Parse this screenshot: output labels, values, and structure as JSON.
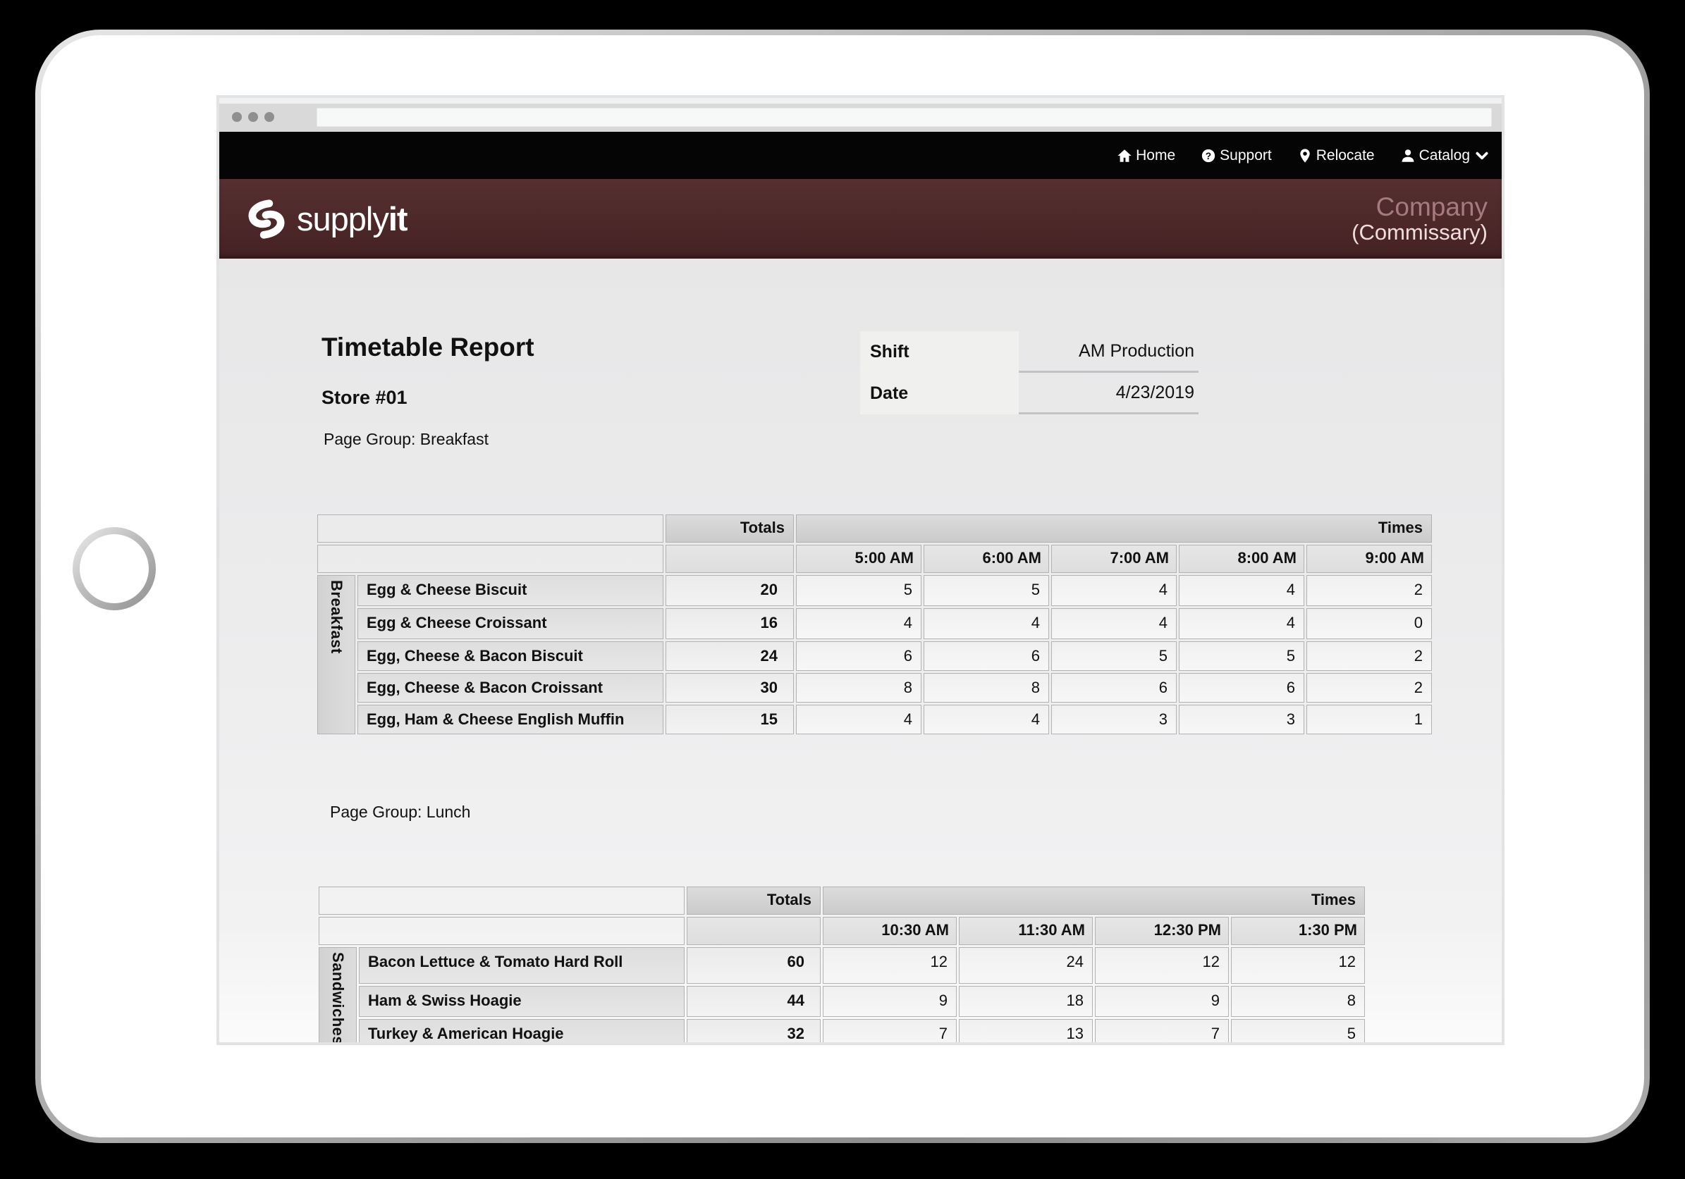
{
  "browser": {
    "address_value": ""
  },
  "navbar": {
    "background": "#050505",
    "items": [
      {
        "id": "home",
        "label": "Home",
        "icon": "home-icon"
      },
      {
        "id": "support",
        "label": "Support",
        "icon": "question-icon"
      },
      {
        "id": "relocate",
        "label": "Relocate",
        "icon": "location-pin-icon"
      },
      {
        "id": "catalog",
        "label": "Catalog",
        "icon": "person-icon",
        "has_dropdown": true
      }
    ]
  },
  "brand_header": {
    "background": "#4d2829",
    "logo_text_regular": "supply",
    "logo_text_bold": "it",
    "company_name": "Company",
    "company_subtitle": "(Commissary)",
    "company_name_color": "#a67b7f",
    "company_subtitle_color": "#f0dede"
  },
  "report": {
    "title": "Timetable Report",
    "store": "Store #01",
    "meta": {
      "shift_label": "Shift",
      "shift_value": "AM Production",
      "date_label": "Date",
      "date_value": "4/23/2019"
    }
  },
  "sections": [
    {
      "page_group_label": "Page Group: Breakfast",
      "group": "Breakfast",
      "totals_header": "Totals",
      "times_header": "Times",
      "time_columns": [
        "5:00 AM",
        "6:00 AM",
        "7:00 AM",
        "8:00 AM",
        "9:00 AM"
      ],
      "rows": [
        {
          "item": "Egg & Cheese Biscuit",
          "total": "20",
          "times": [
            "5",
            "5",
            "4",
            "4",
            "2"
          ]
        },
        {
          "item": "Egg & Cheese Croissant",
          "total": "16",
          "times": [
            "4",
            "4",
            "4",
            "4",
            "0"
          ]
        },
        {
          "item": "Egg, Cheese & Bacon Biscuit",
          "total": "24",
          "times": [
            "6",
            "6",
            "5",
            "5",
            "2"
          ]
        },
        {
          "item": "Egg, Cheese & Bacon Croissant",
          "total": "30",
          "times": [
            "8",
            "8",
            "6",
            "6",
            "2"
          ]
        },
        {
          "item": "Egg, Ham & Cheese English Muffin",
          "total": "15",
          "times": [
            "4",
            "4",
            "3",
            "3",
            "1"
          ]
        }
      ]
    },
    {
      "page_group_label": "Page Group: Lunch",
      "group": "Sandwiches",
      "totals_header": "Totals",
      "times_header": "Times",
      "time_columns": [
        "10:30 AM",
        "11:30 AM",
        "12:30 PM",
        "1:30 PM"
      ],
      "rows": [
        {
          "item": "Bacon Lettuce & Tomato Hard Roll",
          "total": "60",
          "times": [
            "12",
            "24",
            "12",
            "12"
          ]
        },
        {
          "item": "Ham & Swiss Hoagie",
          "total": "44",
          "times": [
            "9",
            "18",
            "9",
            "8"
          ]
        },
        {
          "item": "Turkey & American Hoagie",
          "total": "32",
          "times": [
            "7",
            "13",
            "7",
            "5"
          ]
        }
      ]
    }
  ]
}
